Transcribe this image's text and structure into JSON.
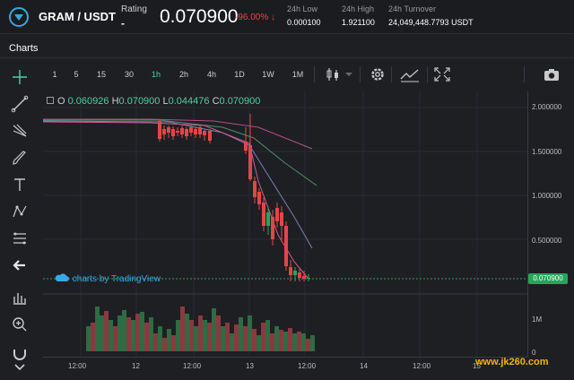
{
  "header": {
    "pair": "GRAM / USDT",
    "rating_label": "Rating",
    "rating_value": "-",
    "price": "0.070900",
    "change": "-96.00% ↓",
    "stats": [
      {
        "label": "24h Low",
        "value": "0.000100"
      },
      {
        "label": "24h High",
        "value": "1.921100"
      },
      {
        "label": "24h Turnover",
        "value": "24,049,448.7793 USDT"
      }
    ]
  },
  "charts_title": "Charts",
  "intervals": [
    "1",
    "5",
    "15",
    "30",
    "1h",
    "2h",
    "4h",
    "1D",
    "1W",
    "1M"
  ],
  "active_interval": "1h",
  "ohlc": {
    "o_label": "O",
    "o": "0.060926",
    "h_label": "H",
    "h": "0.070900",
    "l_label": "L",
    "l": "0.044476",
    "c_label": "C",
    "c": "0.070900"
  },
  "price_axis": [
    "2.000000",
    "1.500000",
    "1.000000",
    "0.500000"
  ],
  "volume_axis": [
    "1M",
    "0"
  ],
  "last_price_tag": "0.070900",
  "tv_label": "charts by TradingView",
  "time_axis": [
    "12:00",
    "12",
    "12:00",
    "13",
    "12:00",
    "14",
    "12:00",
    "15"
  ],
  "watermark": "www.jk260.com",
  "colors": {
    "up": "#26a65b",
    "down": "#e04848",
    "accent": "#4ed1a0",
    "background": "#1e1f23"
  },
  "icons": [
    "crosshair-icon",
    "trendline-icon",
    "fork-icon",
    "brush-icon",
    "text-icon",
    "pattern-icon",
    "fib-icon",
    "back-arrow-icon",
    "measure-icon",
    "zoom-icon",
    "magnet-icon",
    "candle-type-icon",
    "settings-icon",
    "indicators-icon",
    "fullscreen-icon",
    "camera-icon"
  ]
}
